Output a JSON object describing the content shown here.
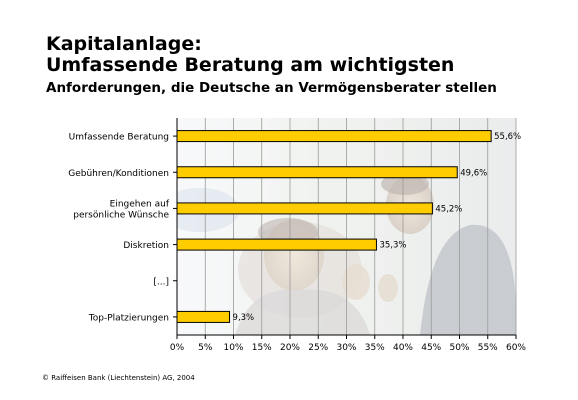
{
  "title_line1": "Kapitalanlage:",
  "title_line2": "Umfassende Beratung am wichtigsten",
  "subtitle": "Anforderungen, die Deutsche an Vermögensberater stellen",
  "footer": "© Raiffeisen Bank (Liechtenstein) AG, 2004",
  "colors": {
    "bar": "#FFCC00",
    "bar_border": "#000000",
    "grid": "#9a9a9a"
  },
  "chart_data": {
    "type": "bar",
    "orientation": "horizontal",
    "title": "Kapitalanlage: Umfassende Beratung am wichtigsten",
    "subtitle": "Anforderungen, die Deutsche an Vermögensberater stellen",
    "categories": [
      "Umfassende Beratung",
      "Gebühren/Konditionen",
      "Eingehen auf persönliche Wünsche",
      "Diskretion",
      "[...]",
      "Top-Platzierungen"
    ],
    "category_lines": [
      [
        "Umfassende Beratung"
      ],
      [
        "Gebühren/Konditionen"
      ],
      [
        "Eingehen auf",
        "persönliche Wünsche"
      ],
      [
        "Diskretion"
      ],
      [
        "[...]"
      ],
      [
        "Top-Platzierungen"
      ]
    ],
    "values": [
      55.6,
      49.6,
      45.2,
      35.3,
      null,
      9.3
    ],
    "data_labels": [
      "55,6%",
      "49,6%",
      "45,2%",
      "35,3%",
      "",
      "9,3%"
    ],
    "x_ticks": [
      0,
      5,
      10,
      15,
      20,
      25,
      30,
      35,
      40,
      45,
      50,
      55,
      60
    ],
    "x_tick_labels": [
      "0%",
      "5%",
      "10%",
      "15%",
      "20%",
      "25%",
      "30%",
      "35%",
      "40%",
      "45%",
      "50%",
      "55%",
      "60%"
    ],
    "xlim": [
      0,
      60
    ],
    "xlabel": "",
    "ylabel": "",
    "grid": true,
    "background": "photo of two laughing men in business suits behind the plot area"
  }
}
